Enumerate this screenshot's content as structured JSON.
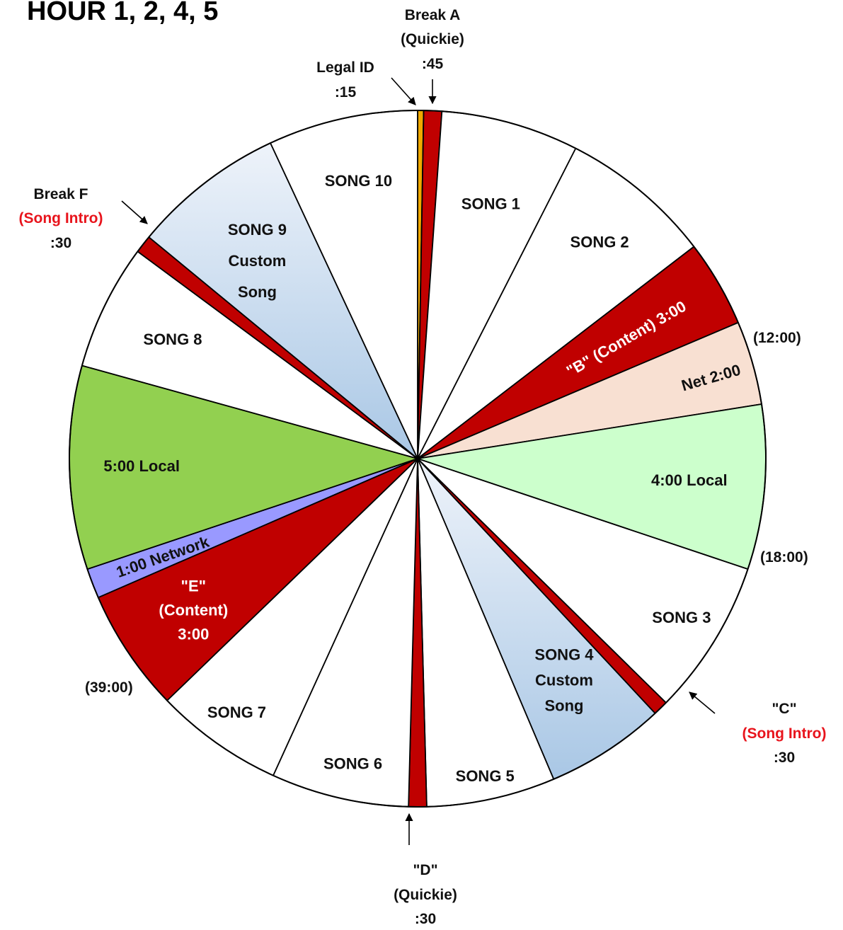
{
  "title": "HOUR 1, 2, 4, 5",
  "colors": {
    "outline": "#000000",
    "white": "#ffffff",
    "break_red": "#c00000",
    "legal_id": "#f0a800",
    "net_peach": "#f8e0d2",
    "local_light_green": "#ccffcc",
    "local_green": "#92d050",
    "network_purple": "#9999ff",
    "custom_song_top": "#eef3fa",
    "custom_song_bottom": "#a9c7e5",
    "song_intro_text": "#e8141c"
  },
  "segments": [
    {
      "id": "legal-id",
      "start_deg": 0.0,
      "end_deg": 1.0,
      "fill": "legal_id",
      "label": []
    },
    {
      "id": "break-a",
      "start_deg": 1.0,
      "end_deg": 4.0,
      "fill": "break_red",
      "label": []
    },
    {
      "id": "song-1",
      "start_deg": 4.0,
      "end_deg": 27.0,
      "fill": "white",
      "label": [
        "SONG 1"
      ]
    },
    {
      "id": "song-2",
      "start_deg": 27.0,
      "end_deg": 52.5,
      "fill": "white",
      "label": [
        "SONG 2"
      ]
    },
    {
      "id": "break-b",
      "start_deg": 52.5,
      "end_deg": 67.0,
      "fill": "break_red",
      "label": [
        "\"B\"  (Content) 3:00"
      ],
      "text_color": "#ffffff",
      "rotate": true
    },
    {
      "id": "net",
      "start_deg": 67.0,
      "end_deg": 81.0,
      "fill": "net_peach",
      "label": [
        "Net 2:00"
      ],
      "rotate": true
    },
    {
      "id": "local-4",
      "start_deg": 81.0,
      "end_deg": 108.5,
      "fill": "local_light_green",
      "label": [
        "4:00 Local"
      ]
    },
    {
      "id": "song-3",
      "start_deg": 108.5,
      "end_deg": 134.5,
      "fill": "white",
      "label": [
        "SONG 3"
      ]
    },
    {
      "id": "break-c",
      "start_deg": 134.5,
      "end_deg": 137.0,
      "fill": "break_red",
      "label": []
    },
    {
      "id": "song-4",
      "start_deg": 137.0,
      "end_deg": 157.0,
      "fill": "custom_song",
      "label": [
        "SONG 4",
        "Custom",
        "Song"
      ]
    },
    {
      "id": "song-5",
      "start_deg": 157.0,
      "end_deg": 178.5,
      "fill": "white",
      "label": [
        "SONG 5"
      ]
    },
    {
      "id": "break-d",
      "start_deg": 178.5,
      "end_deg": 181.5,
      "fill": "break_red",
      "label": []
    },
    {
      "id": "song-6",
      "start_deg": 181.5,
      "end_deg": 204.5,
      "fill": "white",
      "label": [
        "SONG 6"
      ]
    },
    {
      "id": "song-7",
      "start_deg": 204.5,
      "end_deg": 226.0,
      "fill": "white",
      "label": [
        "SONG 7"
      ]
    },
    {
      "id": "break-e",
      "start_deg": 226.0,
      "end_deg": 246.5,
      "fill": "break_red",
      "label": [
        "\"E\"",
        "(Content)",
        "3:00"
      ],
      "text_color": "#ffffff"
    },
    {
      "id": "network",
      "start_deg": 246.5,
      "end_deg": 251.5,
      "fill": "network_purple",
      "label": [
        "1:00 Network"
      ],
      "rotate": true
    },
    {
      "id": "local-5",
      "start_deg": 251.5,
      "end_deg": 285.5,
      "fill": "local_green",
      "label": [
        "5:00 Local"
      ]
    },
    {
      "id": "song-8",
      "start_deg": 285.5,
      "end_deg": 306.5,
      "fill": "white",
      "label": [
        "SONG 8"
      ]
    },
    {
      "id": "break-f",
      "start_deg": 306.5,
      "end_deg": 309.5,
      "fill": "break_red",
      "label": []
    },
    {
      "id": "song-9",
      "start_deg": 309.5,
      "end_deg": 335.0,
      "fill": "custom_song",
      "label": [
        "SONG 9",
        "Custom",
        "Song"
      ]
    },
    {
      "id": "song-10",
      "start_deg": 335.0,
      "end_deg": 360.0,
      "fill": "white",
      "label": [
        "SONG 10"
      ]
    }
  ],
  "times": {
    "t12": "(12:00)",
    "t18": "(18:00)",
    "t39": "(39:00)"
  },
  "callouts": {
    "legal_id": {
      "line1": "Legal ID",
      "line2": ":15"
    },
    "break_a": {
      "line1": "Break A",
      "line2": "(Quickie)",
      "line3": ":45"
    },
    "break_f": {
      "line1": "Break F",
      "line2": "(Song Intro)",
      "line3": ":30"
    },
    "break_c": {
      "line1": "\"C\"",
      "line2": "(Song Intro)",
      "line3": ":30"
    },
    "break_d": {
      "line1": "\"D\"",
      "line2": "(Quickie)",
      "line3": ":30"
    }
  }
}
